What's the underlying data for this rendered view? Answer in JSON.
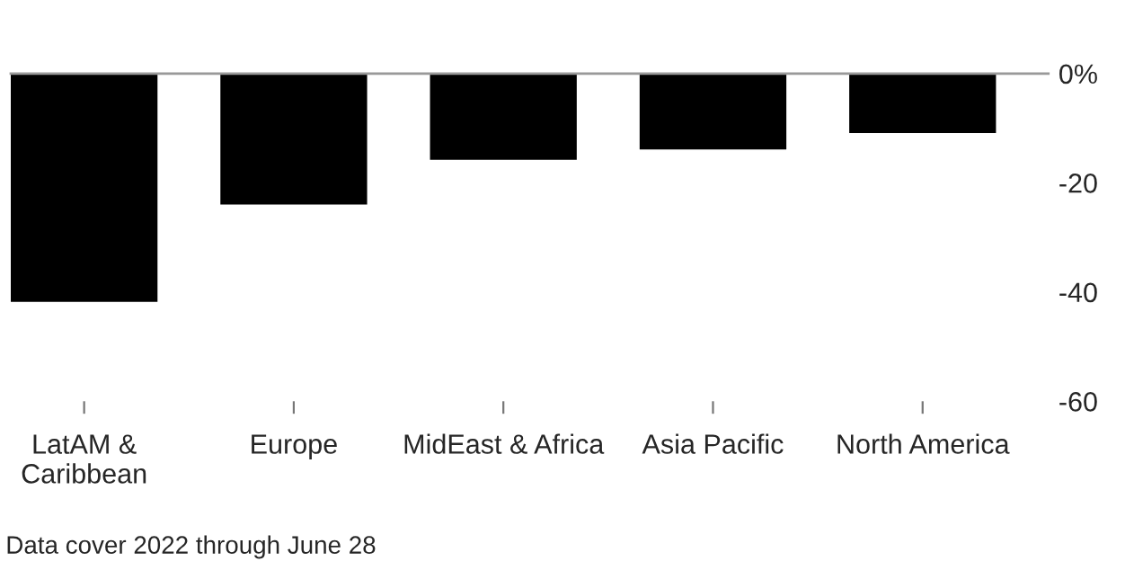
{
  "chart_data": {
    "type": "bar",
    "categories": [
      "LatAM &\nCaribbean",
      "Europe",
      "MidEast & Africa",
      "Asia Pacific",
      "North America"
    ],
    "values": [
      -41.8,
      -24,
      -15.8,
      -13.9,
      -10.9
    ],
    "color": "#000000",
    "ylim": [
      -60,
      0
    ],
    "yticks": [
      {
        "value": 0,
        "label": "0%"
      },
      -20,
      -40,
      -60
    ],
    "grid": false,
    "annotations": [
      "Data cover 2022 through June 28"
    ]
  }
}
